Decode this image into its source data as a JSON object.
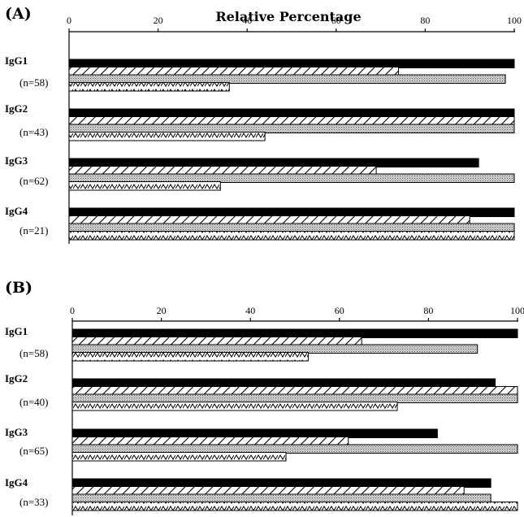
{
  "chart_data": [
    {
      "panel": "(A)",
      "title": "Relative Percentage",
      "type": "bar",
      "orientation": "horizontal",
      "xlim": [
        0,
        100
      ],
      "xticks": [
        "0",
        "20",
        "40",
        "60",
        "80",
        "100"
      ],
      "categories": [
        {
          "label": "IgG1",
          "n_label": "(n=58)",
          "values": [
            100,
            74,
            98,
            36
          ]
        },
        {
          "label": "IgG2",
          "n_label": "(n=43)",
          "values": [
            100,
            100,
            100,
            44
          ]
        },
        {
          "label": "IgG3",
          "n_label": "(n=62)",
          "values": [
            92,
            69,
            100,
            34
          ]
        },
        {
          "label": "IgG4",
          "n_label": "(n=21)",
          "values": [
            100,
            90,
            100,
            100
          ]
        }
      ]
    },
    {
      "panel": "(B)",
      "title": "",
      "type": "bar",
      "orientation": "horizontal",
      "xlim": [
        0,
        100
      ],
      "xticks": [
        "0",
        "20",
        "40",
        "60",
        "80",
        "100"
      ],
      "categories": [
        {
          "label": "IgG1",
          "n_label": "(n=58)",
          "values": [
            100,
            65,
            91,
            53
          ]
        },
        {
          "label": "IgG2",
          "n_label": "(n=40)",
          "values": [
            95,
            100,
            100,
            73
          ]
        },
        {
          "label": "IgG3",
          "n_label": "(n=65)",
          "values": [
            82,
            62,
            100,
            48
          ]
        },
        {
          "label": "IgG4",
          "n_label": "(n=33)",
          "values": [
            94,
            88,
            94,
            100
          ]
        }
      ]
    }
  ]
}
